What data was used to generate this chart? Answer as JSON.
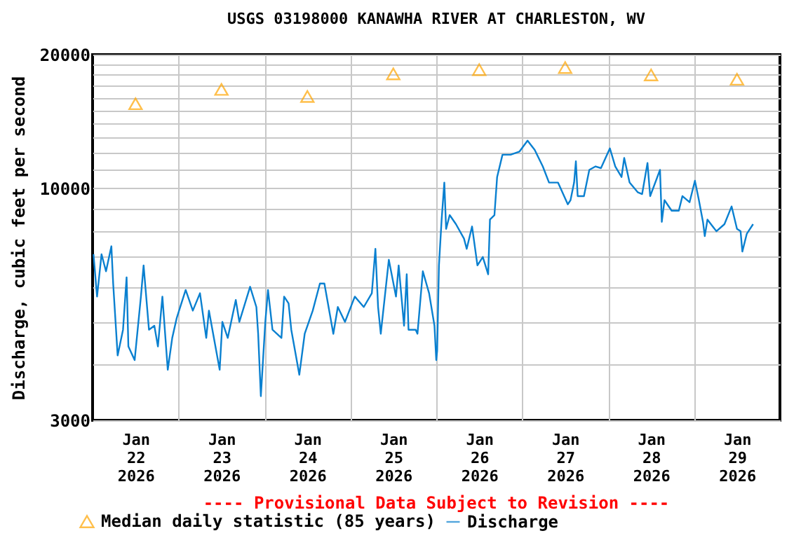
{
  "chart_data": {
    "type": "line",
    "title": "USGS 03198000 KANAWHA RIVER AT CHARLESTON, WV",
    "ylabel": "Discharge, cubic feet per second",
    "annotations": [
      "---- Provisional Data Subject to Revision ----"
    ],
    "log": "y",
    "grid": true,
    "legend": "bottom",
    "xlim": [
      "2026-01-22T00:00",
      "2026-01-30T00:00"
    ],
    "xticks": [
      {
        "value": "2026-01-22T12:00",
        "label": "Jan 22 2026"
      },
      {
        "value": "2026-01-23T00:00",
        "label": null
      },
      {
        "value": "2026-01-23T12:00",
        "label": "Jan 23 2026"
      },
      {
        "value": "2026-01-24T00:00",
        "label": null
      },
      {
        "value": "2026-01-24T12:00",
        "label": "Jan 24 2026"
      },
      {
        "value": "2026-01-25T00:00",
        "label": null
      },
      {
        "value": "2026-01-25T12:00",
        "label": "Jan 25 2026"
      },
      {
        "value": "2026-01-26T00:00",
        "label": null
      },
      {
        "value": "2026-01-26T12:00",
        "label": "Jan 26 2026"
      },
      {
        "value": "2026-01-27T00:00",
        "label": null
      },
      {
        "value": "2026-01-27T12:00",
        "label": "Jan 27 2026"
      },
      {
        "value": "2026-01-28T00:00",
        "label": null
      },
      {
        "value": "2026-01-28T12:00",
        "label": "Jan 28 2026"
      },
      {
        "value": "2026-01-29T00:00",
        "label": null
      },
      {
        "value": "2026-01-29T12:00",
        "label": "Jan 29 2026"
      }
    ],
    "ylim": [
      3000,
      20000
    ],
    "yticks": [
      3000,
      {
        "value": 4000,
        "label": null
      },
      {
        "value": 5000,
        "label": null
      },
      {
        "value": 6000,
        "label": null
      },
      {
        "value": 7000,
        "label": null
      },
      {
        "value": 8000,
        "label": null
      },
      {
        "value": 9000,
        "label": null
      },
      10000,
      {
        "value": 11000,
        "label": null
      },
      {
        "value": 12000,
        "label": null
      },
      {
        "value": 13000,
        "label": null
      },
      {
        "value": 14000,
        "label": null
      },
      {
        "value": 15000,
        "label": null
      },
      {
        "value": 16000,
        "label": null
      },
      {
        "value": 17000,
        "label": null
      },
      {
        "value": 18000,
        "label": null
      },
      {
        "value": 19000,
        "label": null
      },
      20000
    ],
    "series": [
      {
        "name": "Median daily statistic (85 years)",
        "type": "scatter",
        "marker": "triangle",
        "color": "#ffa500",
        "x": [
          "2026-01-22T12:00",
          "2026-01-23T12:00",
          "2026-01-24T12:00",
          "2026-01-25T12:00",
          "2026-01-26T12:00",
          "2026-01-27T12:00",
          "2026-01-28T12:00",
          "2026-01-29T12:00"
        ],
        "values": [
          15500,
          16700,
          16100,
          18100,
          18500,
          18700,
          18000,
          17600
        ]
      },
      {
        "name": "Discharge",
        "color": "#0a80d0",
        "x": [
          "2026-01-22T00:15",
          "2026-01-22T01:15",
          "2026-01-22T02:30",
          "2026-01-22T03:45",
          "2026-01-22T05:15",
          "2026-01-22T05:45",
          "2026-01-22T07:00",
          "2026-01-22T08:30",
          "2026-01-22T09:30",
          "2026-01-22T10:00",
          "2026-01-22T11:45",
          "2026-01-22T13:30",
          "2026-01-22T14:15",
          "2026-01-22T15:45",
          "2026-01-22T17:15",
          "2026-01-22T18:15",
          "2026-01-22T19:30",
          "2026-01-22T21:00",
          "2026-01-22T22:15",
          "2026-01-22T23:30",
          "2026-01-23T02:00",
          "2026-01-23T04:00",
          "2026-01-23T06:00",
          "2026-01-23T07:45",
          "2026-01-23T08:30",
          "2026-01-23T11:30",
          "2026-01-23T12:15",
          "2026-01-23T13:45",
          "2026-01-23T16:00",
          "2026-01-23T17:00",
          "2026-01-23T20:00",
          "2026-01-23T21:45",
          "2026-01-23T22:15",
          "2026-01-23T23:00",
          "2026-01-24T00:15",
          "2026-01-24T01:00",
          "2026-01-24T02:15",
          "2026-01-24T04:45",
          "2026-01-24T05:30",
          "2026-01-24T06:45",
          "2026-01-24T07:30",
          "2026-01-24T09:45",
          "2026-01-24T11:15",
          "2026-01-24T13:30",
          "2026-01-24T15:30",
          "2026-01-24T16:45",
          "2026-01-24T19:15",
          "2026-01-24T20:30",
          "2026-01-24T22:30",
          "2026-01-25T01:15",
          "2026-01-25T03:45",
          "2026-01-25T06:00",
          "2026-01-25T07:00",
          "2026-01-25T07:45",
          "2026-01-25T08:30",
          "2026-01-25T10:45",
          "2026-01-25T12:45",
          "2026-01-25T13:30",
          "2026-01-25T15:00",
          "2026-01-25T15:45",
          "2026-01-25T16:15",
          "2026-01-25T18:15",
          "2026-01-25T18:45",
          "2026-01-25T20:15",
          "2026-01-25T22:00",
          "2026-01-25T23:30",
          "2026-01-26T00:00",
          "2026-01-26T00:15",
          "2026-01-26T00:45",
          "2026-01-26T01:30",
          "2026-01-26T02:15",
          "2026-01-26T02:45",
          "2026-01-26T03:45",
          "2026-01-26T05:30",
          "2026-01-26T07:45",
          "2026-01-26T08:30",
          "2026-01-26T10:00",
          "2026-01-26T11:30",
          "2026-01-26T13:00",
          "2026-01-26T14:30",
          "2026-01-26T15:00",
          "2026-01-26T16:15",
          "2026-01-26T17:00",
          "2026-01-26T18:30",
          "2026-01-26T20:45",
          "2026-01-26T23:15",
          "2026-01-27T01:30",
          "2026-01-27T03:30",
          "2026-01-27T05:45",
          "2026-01-27T07:30",
          "2026-01-27T10:00",
          "2026-01-27T12:45",
          "2026-01-27T13:30",
          "2026-01-27T14:30",
          "2026-01-27T15:00",
          "2026-01-27T15:30",
          "2026-01-27T17:15",
          "2026-01-27T18:45",
          "2026-01-27T20:30",
          "2026-01-27T22:00",
          "2026-01-28T00:30",
          "2026-01-28T02:00",
          "2026-01-28T03:45",
          "2026-01-28T04:30",
          "2026-01-28T06:00",
          "2026-01-28T08:15",
          "2026-01-28T09:30",
          "2026-01-28T11:00",
          "2026-01-28T11:45",
          "2026-01-28T14:30",
          "2026-01-28T15:00",
          "2026-01-28T15:45",
          "2026-01-28T17:45",
          "2026-01-28T19:45",
          "2026-01-28T20:45",
          "2026-01-28T22:45",
          "2026-01-29T00:15",
          "2026-01-29T01:15",
          "2026-01-29T02:30",
          "2026-01-29T03:00",
          "2026-01-29T03:45",
          "2026-01-29T06:15",
          "2026-01-29T08:30",
          "2026-01-29T10:30",
          "2026-01-29T12:00",
          "2026-01-29T13:00",
          "2026-01-29T13:30",
          "2026-01-29T14:45",
          "2026-01-29T16:30"
        ],
        "values": [
          7100,
          5700,
          7100,
          6500,
          7400,
          6100,
          4200,
          4800,
          6300,
          4400,
          4100,
          5700,
          6700,
          4800,
          4900,
          4400,
          5700,
          3900,
          4600,
          5100,
          5900,
          5300,
          5800,
          4600,
          5300,
          3900,
          5000,
          4600,
          5600,
          5000,
          6000,
          5400,
          4700,
          3400,
          5000,
          5900,
          4800,
          4600,
          5700,
          5500,
          4800,
          3800,
          4700,
          5300,
          6100,
          6100,
          4700,
          5400,
          5000,
          5700,
          5400,
          5800,
          7300,
          5400,
          4700,
          6900,
          5700,
          6700,
          4900,
          6400,
          4800,
          4800,
          4700,
          6500,
          5800,
          4900,
          4100,
          4300,
          6700,
          8500,
          10300,
          8100,
          8700,
          8300,
          7700,
          7300,
          8200,
          6700,
          7000,
          6400,
          8500,
          8700,
          10600,
          11900,
          11900,
          12100,
          12800,
          12200,
          11200,
          10300,
          10300,
          9200,
          9400,
          10300,
          11500,
          9600,
          9600,
          11000,
          11200,
          11100,
          12300,
          11200,
          10600,
          11700,
          10300,
          9800,
          9700,
          11400,
          9600,
          11000,
          8400,
          9400,
          8900,
          8900,
          9600,
          9300,
          10400,
          9500,
          8400,
          7800,
          8500,
          8000,
          8300,
          9100,
          8100,
          8000,
          7200,
          7900,
          8300
        ]
      }
    ]
  }
}
